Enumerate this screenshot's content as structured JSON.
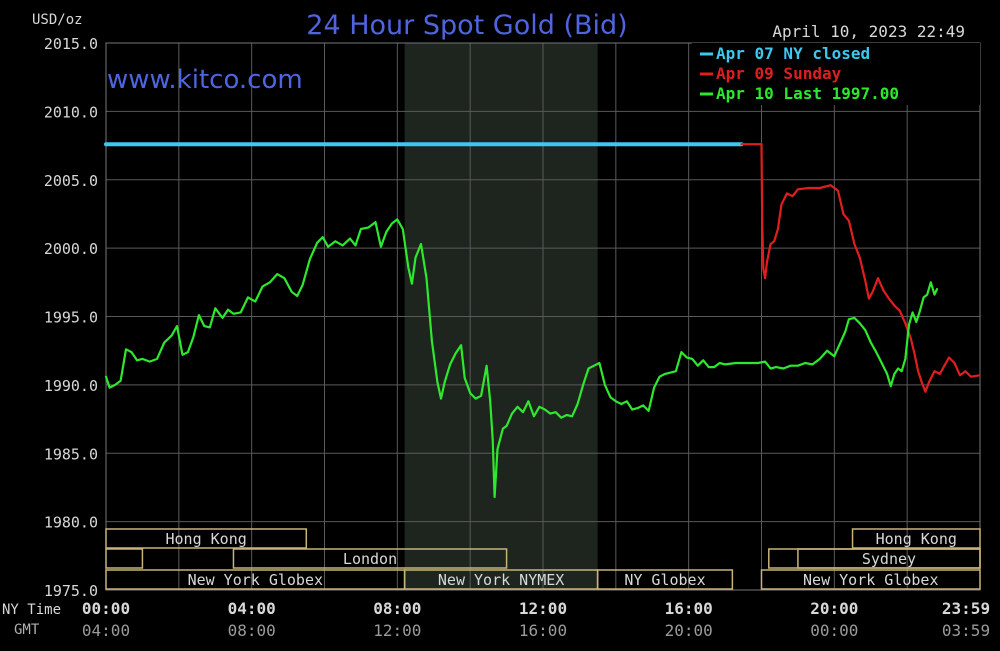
{
  "header": {
    "title": "24 Hour Spot Gold (Bid)",
    "unit_label": "USD/oz",
    "timestamp": "April 10, 2023 22:49",
    "watermark": "www.kitco.com"
  },
  "colors": {
    "background": "#000000",
    "grid": "#5a5a5a",
    "axis_text": "#d8d8d8",
    "title": "#4e64e0",
    "watermark": "#4e64e0",
    "apr07": "#3cc8f0",
    "apr09": "#e01e1e",
    "apr10": "#2ee82e",
    "session_box": "#c8b478",
    "shade": "#1e241e"
  },
  "axis_rows": {
    "ny_label": "NY Time",
    "gmt_label": "GMT"
  },
  "sessions": {
    "row1": [
      {
        "label": "Hong Kong",
        "from": 0,
        "to": 5.5
      },
      {
        "label": "Hong Kong",
        "from": 20.5,
        "to": 24
      }
    ],
    "row2": [
      {
        "label": "",
        "from": 0,
        "to": 1
      },
      {
        "label": "London",
        "from": 3.5,
        "to": 11
      },
      {
        "label": "",
        "from": 18.2,
        "to": 24
      },
      {
        "label": "Sydney",
        "from": 19,
        "to": 24
      }
    ],
    "row3": [
      {
        "label": "New York Globex",
        "from": 0,
        "to": 8.2
      },
      {
        "label": "New York NYMEX",
        "from": 8.2,
        "to": 13.5
      },
      {
        "label": "NY Globex",
        "from": 13.5,
        "to": 17.2
      },
      {
        "label": "New York Globex",
        "from": 18,
        "to": 24
      }
    ],
    "nymex_shade": {
      "from": 8.2,
      "to": 13.5
    }
  },
  "chart_data": {
    "type": "line",
    "title": "24 Hour Spot Gold (Bid)",
    "ylabel": "USD/oz",
    "ylim": [
      1975,
      2015
    ],
    "y_ticks": [
      1975,
      1980,
      1985,
      1990,
      1995,
      2000,
      2005,
      2010,
      2015
    ],
    "y_tick_labels": [
      "1975.0",
      "1980.0",
      "1985.0",
      "1990.0",
      "1995.0",
      "2000.0",
      "2005.0",
      "2010.0",
      "2015.0"
    ],
    "xlim": [
      0,
      24
    ],
    "x_ticks": [
      0,
      4,
      8,
      12,
      16,
      20,
      24
    ],
    "x_tick_labels_ny": [
      "00:00",
      "04:00",
      "08:00",
      "12:00",
      "16:00",
      "20:00",
      "23:59"
    ],
    "x_tick_labels_gmt": [
      "04:00",
      "08:00",
      "12:00",
      "16:00",
      "20:00",
      "00:00",
      "03:59"
    ],
    "legend_position": "top-right",
    "grid": true,
    "series": [
      {
        "name": "Apr 07 NY closed",
        "color": "#3cc8f0",
        "points": [
          [
            0,
            2007.6
          ],
          [
            17.45,
            2007.6
          ]
        ]
      },
      {
        "name": "Apr 09 Sunday",
        "color": "#e01e1e",
        "points": [
          [
            17.45,
            2007.6
          ],
          [
            18.0,
            2007.6
          ],
          [
            18.02,
            2002.0
          ],
          [
            18.05,
            1998.5
          ],
          [
            18.1,
            1997.8
          ],
          [
            18.15,
            1999.0
          ],
          [
            18.25,
            2000.3
          ],
          [
            18.35,
            2000.5
          ],
          [
            18.45,
            2001.4
          ],
          [
            18.55,
            2003.2
          ],
          [
            18.7,
            2004.0
          ],
          [
            18.85,
            2003.8
          ],
          [
            19.0,
            2004.3
          ],
          [
            19.3,
            2004.4
          ],
          [
            19.6,
            2004.4
          ],
          [
            19.9,
            2004.6
          ],
          [
            20.1,
            2004.2
          ],
          [
            20.25,
            2002.5
          ],
          [
            20.4,
            2002.0
          ],
          [
            20.55,
            2000.3
          ],
          [
            20.7,
            1999.3
          ],
          [
            20.85,
            1997.6
          ],
          [
            20.95,
            1996.3
          ],
          [
            21.05,
            1996.8
          ],
          [
            21.2,
            1997.8
          ],
          [
            21.35,
            1996.9
          ],
          [
            21.5,
            1996.3
          ],
          [
            21.65,
            1995.8
          ],
          [
            21.8,
            1995.4
          ],
          [
            21.95,
            1994.5
          ],
          [
            22.1,
            1993.4
          ],
          [
            22.2,
            1992.3
          ],
          [
            22.3,
            1991.0
          ],
          [
            22.4,
            1990.2
          ],
          [
            22.5,
            1989.5
          ],
          [
            22.6,
            1990.2
          ],
          [
            22.75,
            1991.0
          ],
          [
            22.9,
            1990.8
          ],
          [
            23.0,
            1991.3
          ],
          [
            23.15,
            1992.0
          ],
          [
            23.3,
            1991.6
          ],
          [
            23.45,
            1990.7
          ],
          [
            23.6,
            1991.0
          ],
          [
            23.75,
            1990.6
          ],
          [
            23.99,
            1990.7
          ]
        ]
      },
      {
        "name": "Apr 10 Last 1997.00",
        "color": "#2ee82e",
        "points": [
          [
            0,
            1990.6
          ],
          [
            0.1,
            1989.8
          ],
          [
            0.25,
            1990.0
          ],
          [
            0.4,
            1990.3
          ],
          [
            0.55,
            1992.6
          ],
          [
            0.7,
            1992.4
          ],
          [
            0.85,
            1991.8
          ],
          [
            1.0,
            1991.9
          ],
          [
            1.2,
            1991.7
          ],
          [
            1.4,
            1991.9
          ],
          [
            1.6,
            1993.1
          ],
          [
            1.8,
            1993.6
          ],
          [
            1.95,
            1994.3
          ],
          [
            2.1,
            1992.2
          ],
          [
            2.25,
            1992.4
          ],
          [
            2.4,
            1993.5
          ],
          [
            2.55,
            1995.1
          ],
          [
            2.7,
            1994.3
          ],
          [
            2.85,
            1994.2
          ],
          [
            3.0,
            1995.6
          ],
          [
            3.2,
            1994.9
          ],
          [
            3.35,
            1995.5
          ],
          [
            3.5,
            1995.2
          ],
          [
            3.7,
            1995.3
          ],
          [
            3.9,
            1996.4
          ],
          [
            4.1,
            1996.1
          ],
          [
            4.3,
            1997.2
          ],
          [
            4.5,
            1997.5
          ],
          [
            4.7,
            1998.1
          ],
          [
            4.9,
            1997.8
          ],
          [
            5.1,
            1996.8
          ],
          [
            5.25,
            1996.5
          ],
          [
            5.4,
            1997.3
          ],
          [
            5.6,
            1999.2
          ],
          [
            5.8,
            2000.4
          ],
          [
            5.95,
            2000.8
          ],
          [
            6.1,
            2000.1
          ],
          [
            6.3,
            2000.5
          ],
          [
            6.5,
            2000.2
          ],
          [
            6.7,
            2000.7
          ],
          [
            6.85,
            2000.2
          ],
          [
            7.0,
            2001.4
          ],
          [
            7.2,
            2001.5
          ],
          [
            7.4,
            2001.9
          ],
          [
            7.55,
            2000.1
          ],
          [
            7.7,
            2001.2
          ],
          [
            7.85,
            2001.8
          ],
          [
            8.0,
            2002.1
          ],
          [
            8.15,
            2001.4
          ],
          [
            8.3,
            1998.6
          ],
          [
            8.4,
            1997.4
          ],
          [
            8.5,
            1999.3
          ],
          [
            8.65,
            2000.3
          ],
          [
            8.8,
            1997.8
          ],
          [
            8.95,
            1993.2
          ],
          [
            9.1,
            1990.2
          ],
          [
            9.2,
            1989.0
          ],
          [
            9.3,
            1990.2
          ],
          [
            9.45,
            1991.5
          ],
          [
            9.6,
            1992.3
          ],
          [
            9.75,
            1992.9
          ],
          [
            9.85,
            1990.5
          ],
          [
            10.0,
            1989.4
          ],
          [
            10.15,
            1989.0
          ],
          [
            10.3,
            1989.2
          ],
          [
            10.45,
            1991.4
          ],
          [
            10.55,
            1988.8
          ],
          [
            10.62,
            1986.0
          ],
          [
            10.67,
            1981.8
          ],
          [
            10.75,
            1985.3
          ],
          [
            10.9,
            1986.8
          ],
          [
            11.0,
            1987.0
          ],
          [
            11.15,
            1987.9
          ],
          [
            11.3,
            1988.4
          ],
          [
            11.45,
            1988.0
          ],
          [
            11.6,
            1988.8
          ],
          [
            11.75,
            1987.7
          ],
          [
            11.9,
            1988.4
          ],
          [
            12.05,
            1988.2
          ],
          [
            12.2,
            1987.9
          ],
          [
            12.35,
            1988.0
          ],
          [
            12.5,
            1987.6
          ],
          [
            12.65,
            1987.8
          ],
          [
            12.8,
            1987.7
          ],
          [
            12.95,
            1988.6
          ],
          [
            13.1,
            1990.0
          ],
          [
            13.25,
            1991.2
          ],
          [
            13.4,
            1991.4
          ],
          [
            13.55,
            1991.6
          ],
          [
            13.7,
            1990.0
          ],
          [
            13.85,
            1989.1
          ],
          [
            14.0,
            1988.8
          ],
          [
            14.15,
            1988.6
          ],
          [
            14.3,
            1988.8
          ],
          [
            14.45,
            1988.2
          ],
          [
            14.6,
            1988.3
          ],
          [
            14.75,
            1988.5
          ],
          [
            14.9,
            1988.1
          ],
          [
            15.05,
            1989.8
          ],
          [
            15.2,
            1990.6
          ],
          [
            15.35,
            1990.8
          ],
          [
            15.5,
            1990.9
          ],
          [
            15.65,
            1991.0
          ],
          [
            15.8,
            1992.4
          ],
          [
            15.95,
            1992.0
          ],
          [
            16.1,
            1991.9
          ],
          [
            16.25,
            1991.4
          ],
          [
            16.4,
            1991.8
          ],
          [
            16.55,
            1991.3
          ],
          [
            16.7,
            1991.3
          ],
          [
            16.85,
            1991.6
          ],
          [
            17.0,
            1991.5
          ],
          [
            17.3,
            1991.6
          ],
          [
            17.6,
            1991.6
          ],
          [
            17.9,
            1991.6
          ],
          [
            18.1,
            1991.7
          ],
          [
            18.25,
            1991.2
          ],
          [
            18.4,
            1991.3
          ],
          [
            18.6,
            1991.2
          ],
          [
            18.8,
            1991.4
          ],
          [
            19.0,
            1991.4
          ],
          [
            19.2,
            1991.6
          ],
          [
            19.4,
            1991.5
          ],
          [
            19.6,
            1991.9
          ],
          [
            19.8,
            1992.5
          ],
          [
            20.0,
            1992.1
          ],
          [
            20.15,
            1993.0
          ],
          [
            20.3,
            1993.9
          ],
          [
            20.4,
            1994.8
          ],
          [
            20.55,
            1994.9
          ],
          [
            20.7,
            1994.5
          ],
          [
            20.85,
            1994.0
          ],
          [
            21.0,
            1993.1
          ],
          [
            21.15,
            1992.4
          ],
          [
            21.3,
            1991.6
          ],
          [
            21.45,
            1990.8
          ],
          [
            21.55,
            1989.9
          ],
          [
            21.65,
            1990.8
          ],
          [
            21.75,
            1991.2
          ],
          [
            21.85,
            1991.0
          ],
          [
            21.95,
            1991.9
          ],
          [
            22.05,
            1994.4
          ],
          [
            22.15,
            1995.3
          ],
          [
            22.25,
            1994.6
          ],
          [
            22.35,
            1995.4
          ],
          [
            22.45,
            1996.4
          ],
          [
            22.55,
            1996.6
          ],
          [
            22.65,
            1997.5
          ],
          [
            22.75,
            1996.6
          ],
          [
            22.82,
            1997.0
          ]
        ]
      }
    ]
  }
}
